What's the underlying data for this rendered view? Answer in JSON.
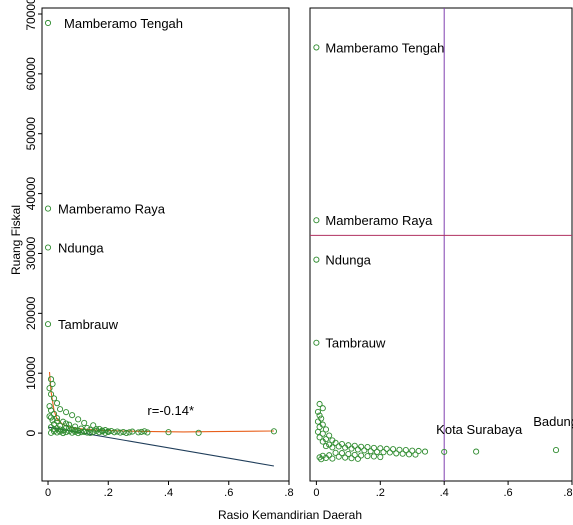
{
  "chart_data": [
    {
      "type": "scatter",
      "panel": "left",
      "xlabel": "Rasio Kemandirian Daerah",
      "ylabel": "Ruang Fiskal",
      "xlim": [
        -0.02,
        0.8
      ],
      "ylim": [
        -8000,
        71000
      ],
      "xticks": [
        0,
        0.2,
        0.4,
        0.6,
        0.8
      ],
      "xtick_labels": [
        "0",
        ".2",
        ".4",
        ".6",
        ".8"
      ],
      "yticks": [
        0,
        10000,
        20000,
        30000,
        40000,
        50000,
        60000,
        70000
      ],
      "ytick_labels": [
        "0",
        "10000",
        "20000",
        "30000",
        "40000",
        "50000",
        "60000",
        "70000"
      ],
      "points": [
        {
          "x": 0.0,
          "y": 68500,
          "label": "Mamberamo Tengah"
        },
        {
          "x": 0.0,
          "y": 37500,
          "label": "Mamberamo Raya"
        },
        {
          "x": 0.0,
          "y": 31000,
          "label": "Ndunga"
        },
        {
          "x": 0.0,
          "y": 18200,
          "label": "Tambrauw"
        },
        {
          "x": 0.01,
          "y": 9000
        },
        {
          "x": 0.015,
          "y": 8200
        },
        {
          "x": 0.005,
          "y": 7500
        },
        {
          "x": 0.01,
          "y": 6500
        },
        {
          "x": 0.02,
          "y": 5800
        },
        {
          "x": 0.03,
          "y": 5000
        },
        {
          "x": 0.005,
          "y": 4500
        },
        {
          "x": 0.04,
          "y": 4000
        },
        {
          "x": 0.01,
          "y": 3800
        },
        {
          "x": 0.06,
          "y": 3500
        },
        {
          "x": 0.02,
          "y": 3200
        },
        {
          "x": 0.08,
          "y": 3000
        },
        {
          "x": 0.005,
          "y": 2800
        },
        {
          "x": 0.03,
          "y": 2500
        },
        {
          "x": 0.1,
          "y": 2300
        },
        {
          "x": 0.015,
          "y": 2100
        },
        {
          "x": 0.05,
          "y": 1900
        },
        {
          "x": 0.12,
          "y": 1700
        },
        {
          "x": 0.02,
          "y": 1500
        },
        {
          "x": 0.07,
          "y": 1400
        },
        {
          "x": 0.15,
          "y": 1300
        },
        {
          "x": 0.04,
          "y": 1200
        },
        {
          "x": 0.09,
          "y": 1100
        },
        {
          "x": 0.01,
          "y": 1000
        },
        {
          "x": 0.06,
          "y": 900
        },
        {
          "x": 0.13,
          "y": 850
        },
        {
          "x": 0.03,
          "y": 800
        },
        {
          "x": 0.11,
          "y": 750
        },
        {
          "x": 0.17,
          "y": 700
        },
        {
          "x": 0.02,
          "y": 650
        },
        {
          "x": 0.08,
          "y": 600
        },
        {
          "x": 0.14,
          "y": 550
        },
        {
          "x": 0.19,
          "y": 500
        },
        {
          "x": 0.05,
          "y": 450
        },
        {
          "x": 0.1,
          "y": 400
        },
        {
          "x": 0.16,
          "y": 380
        },
        {
          "x": 0.21,
          "y": 350
        },
        {
          "x": 0.07,
          "y": 320
        },
        {
          "x": 0.12,
          "y": 300
        },
        {
          "x": 0.18,
          "y": 280
        },
        {
          "x": 0.23,
          "y": 260
        },
        {
          "x": 0.04,
          "y": 240
        },
        {
          "x": 0.09,
          "y": 220
        },
        {
          "x": 0.15,
          "y": 200
        },
        {
          "x": 0.2,
          "y": 190
        },
        {
          "x": 0.25,
          "y": 180
        },
        {
          "x": 0.06,
          "y": 170
        },
        {
          "x": 0.11,
          "y": 160
        },
        {
          "x": 0.17,
          "y": 150
        },
        {
          "x": 0.22,
          "y": 140
        },
        {
          "x": 0.27,
          "y": 130
        },
        {
          "x": 0.3,
          "y": 120
        },
        {
          "x": 0.33,
          "y": 110
        },
        {
          "x": 0.03,
          "y": 100
        },
        {
          "x": 0.13,
          "y": 90
        },
        {
          "x": 0.24,
          "y": 80
        },
        {
          "x": 0.08,
          "y": 60
        },
        {
          "x": 0.19,
          "y": 50
        },
        {
          "x": 0.01,
          "y": 40
        },
        {
          "x": 0.14,
          "y": 30
        },
        {
          "x": 0.26,
          "y": 20
        },
        {
          "x": 0.05,
          "y": 10
        },
        {
          "x": 0.1,
          "y": 0
        },
        {
          "x": 0.02,
          "y": 300
        },
        {
          "x": 0.04,
          "y": 600
        },
        {
          "x": 0.06,
          "y": 1600
        },
        {
          "x": 0.03,
          "y": 2000
        },
        {
          "x": 0.01,
          "y": 2600
        },
        {
          "x": 0.07,
          "y": 800
        },
        {
          "x": 0.09,
          "y": 500
        },
        {
          "x": 0.12,
          "y": 200
        },
        {
          "x": 0.16,
          "y": 650
        },
        {
          "x": 0.18,
          "y": 420
        },
        {
          "x": 0.2,
          "y": 300
        },
        {
          "x": 0.28,
          "y": 250
        },
        {
          "x": 0.31,
          "y": 200
        },
        {
          "x": 0.32,
          "y": 300
        },
        {
          "x": 0.4,
          "y": 150
        },
        {
          "x": 0.5,
          "y": 50
        },
        {
          "x": 0.75,
          "y": 300
        }
      ],
      "fit_lines": [
        {
          "kind": "smooth",
          "color": "#e8601c",
          "x": [
            0.005,
            0.01,
            0.02,
            0.03,
            0.05,
            0.08,
            0.12,
            0.18,
            0.25,
            0.35,
            0.45,
            0.55,
            0.65,
            0.75
          ],
          "y": [
            10200,
            7000,
            3800,
            2300,
            1400,
            900,
            650,
            450,
            350,
            250,
            200,
            250,
            300,
            350
          ]
        },
        {
          "kind": "linear",
          "color": "#1f3d5a",
          "x": [
            0.0,
            0.75
          ],
          "y": [
            1000,
            -5500
          ]
        }
      ],
      "annotation": {
        "text": "r=-0.14*",
        "x": 0.33,
        "y": 3000
      }
    },
    {
      "type": "scatter",
      "panel": "right",
      "xlim": [
        -0.02,
        0.8
      ],
      "ylim": [
        -3000,
        75000
      ],
      "xticks": [
        0,
        0.2,
        0.4,
        0.6,
        0.8
      ],
      "xtick_labels": [
        "0",
        ".2",
        ".4",
        ".6",
        ".8"
      ],
      "reference_lines": [
        {
          "orientation": "vertical",
          "value": 0.4,
          "color": "#8040b0"
        },
        {
          "orientation": "horizontal",
          "value": 37500,
          "color": "#b03060"
        }
      ],
      "points": [
        {
          "x": 0.0,
          "y": 68500,
          "label": "Mamberamo Tengah"
        },
        {
          "x": 0.0,
          "y": 40000,
          "label": "Mamberamo Raya"
        },
        {
          "x": 0.0,
          "y": 33500,
          "label": "Ndunga"
        },
        {
          "x": 0.0,
          "y": 19800,
          "label": "Tambrauw"
        },
        {
          "x": 0.4,
          "y": 1800,
          "label": "Kota Surabaya"
        },
        {
          "x": 0.75,
          "y": 2100,
          "label": "Badung"
        },
        {
          "x": 0.01,
          "y": 9700
        },
        {
          "x": 0.02,
          "y": 9000
        },
        {
          "x": 0.005,
          "y": 8400
        },
        {
          "x": 0.01,
          "y": 7800
        },
        {
          "x": 0.015,
          "y": 7300
        },
        {
          "x": 0.005,
          "y": 6800
        },
        {
          "x": 0.02,
          "y": 6300
        },
        {
          "x": 0.01,
          "y": 5900
        },
        {
          "x": 0.03,
          "y": 5500
        },
        {
          "x": 0.005,
          "y": 5100
        },
        {
          "x": 0.02,
          "y": 4800
        },
        {
          "x": 0.04,
          "y": 4500
        },
        {
          "x": 0.01,
          "y": 4200
        },
        {
          "x": 0.03,
          "y": 3900
        },
        {
          "x": 0.05,
          "y": 3700
        },
        {
          "x": 0.02,
          "y": 3500
        },
        {
          "x": 0.06,
          "y": 3300
        },
        {
          "x": 0.08,
          "y": 3100
        },
        {
          "x": 0.04,
          "y": 3000
        },
        {
          "x": 0.1,
          "y": 2900
        },
        {
          "x": 0.12,
          "y": 2800
        },
        {
          "x": 0.03,
          "y": 2750
        },
        {
          "x": 0.07,
          "y": 2700
        },
        {
          "x": 0.14,
          "y": 2650
        },
        {
          "x": 0.16,
          "y": 2600
        },
        {
          "x": 0.05,
          "y": 2550
        },
        {
          "x": 0.09,
          "y": 2500
        },
        {
          "x": 0.18,
          "y": 2450
        },
        {
          "x": 0.2,
          "y": 2400
        },
        {
          "x": 0.11,
          "y": 2350
        },
        {
          "x": 0.22,
          "y": 2300
        },
        {
          "x": 0.24,
          "y": 2250
        },
        {
          "x": 0.13,
          "y": 2200
        },
        {
          "x": 0.26,
          "y": 2150
        },
        {
          "x": 0.28,
          "y": 2100
        },
        {
          "x": 0.15,
          "y": 2050
        },
        {
          "x": 0.3,
          "y": 2000
        },
        {
          "x": 0.32,
          "y": 1950
        },
        {
          "x": 0.17,
          "y": 1900
        },
        {
          "x": 0.34,
          "y": 1850
        },
        {
          "x": 0.19,
          "y": 1800
        },
        {
          "x": 0.21,
          "y": 1750
        },
        {
          "x": 0.23,
          "y": 1700
        },
        {
          "x": 0.06,
          "y": 1650
        },
        {
          "x": 0.08,
          "y": 1600
        },
        {
          "x": 0.25,
          "y": 1550
        },
        {
          "x": 0.27,
          "y": 1500
        },
        {
          "x": 0.1,
          "y": 1450
        },
        {
          "x": 0.29,
          "y": 1400
        },
        {
          "x": 0.31,
          "y": 1350
        },
        {
          "x": 0.12,
          "y": 1300
        },
        {
          "x": 0.04,
          "y": 1250
        },
        {
          "x": 0.14,
          "y": 1200
        },
        {
          "x": 0.02,
          "y": 1150
        },
        {
          "x": 0.16,
          "y": 1100
        },
        {
          "x": 0.18,
          "y": 1050
        },
        {
          "x": 0.07,
          "y": 1000
        },
        {
          "x": 0.2,
          "y": 950
        },
        {
          "x": 0.01,
          "y": 900
        },
        {
          "x": 0.09,
          "y": 850
        },
        {
          "x": 0.03,
          "y": 800
        },
        {
          "x": 0.11,
          "y": 750
        },
        {
          "x": 0.05,
          "y": 700
        },
        {
          "x": 0.13,
          "y": 650
        },
        {
          "x": 0.015,
          "y": 600
        },
        {
          "x": 0.5,
          "y": 1850
        }
      ]
    }
  ]
}
